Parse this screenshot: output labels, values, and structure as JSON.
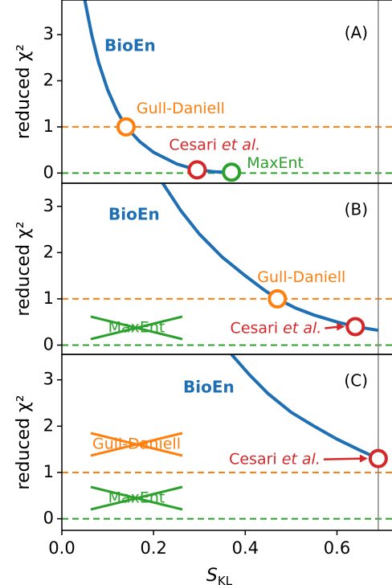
{
  "chart_data": [
    {
      "type": "line",
      "title": "(A)",
      "y_label": "reduced χ²",
      "xlim": [
        0,
        0.72
      ],
      "ylim": [
        -0.22,
        3.75
      ],
      "yticks": [
        0,
        1,
        2,
        3
      ],
      "series": [
        {
          "name": "BioEn",
          "color": "#1f6fb4",
          "x": [
            0.05,
            0.065,
            0.08,
            0.1,
            0.12,
            0.14,
            0.17,
            0.2,
            0.25,
            0.29,
            0.33,
            0.37
          ],
          "values": [
            3.75,
            3.0,
            2.4,
            1.8,
            1.35,
            1.0,
            0.68,
            0.45,
            0.2,
            0.08,
            0.03,
            0.01
          ]
        }
      ],
      "hlines": [
        {
          "value": 1,
          "color": "#ff7f0e"
        },
        {
          "value": 0,
          "color": "#2ca02c"
        }
      ],
      "vline": 0.69,
      "markers": [
        {
          "name": "Gull-Daniell",
          "color": "#ff7f0e",
          "x": 0.14,
          "y": 1.0
        },
        {
          "name": "Cesari et al.",
          "color": "#d62728",
          "x": 0.295,
          "y": 0.07
        },
        {
          "name": "MaxEnt",
          "color": "#2ca02c",
          "x": 0.37,
          "y": 0.02
        }
      ],
      "crossed_out": []
    },
    {
      "type": "line",
      "title": "(B)",
      "y_label": "reduced χ²",
      "xlim": [
        0,
        0.72
      ],
      "ylim": [
        -0.2,
        3.5
      ],
      "yticks": [
        0,
        1,
        2,
        3
      ],
      "series": [
        {
          "name": "BioEn",
          "color": "#1f6fb4",
          "x": [
            0.22,
            0.26,
            0.3,
            0.35,
            0.4,
            0.44,
            0.47,
            0.51,
            0.55,
            0.6,
            0.64,
            0.69
          ],
          "values": [
            3.5,
            2.9,
            2.4,
            1.9,
            1.5,
            1.2,
            1.0,
            0.8,
            0.65,
            0.5,
            0.4,
            0.32
          ]
        }
      ],
      "hlines": [
        {
          "value": 1,
          "color": "#ff7f0e"
        },
        {
          "value": 0,
          "color": "#2ca02c"
        }
      ],
      "vline": 0.69,
      "markers": [
        {
          "name": "Gull-Daniell",
          "color": "#ff7f0e",
          "x": 0.47,
          "y": 1.0
        },
        {
          "name": "Cesari et al.",
          "color": "#d62728",
          "x": 0.64,
          "y": 0.4
        }
      ],
      "crossed_out": [
        {
          "name": "MaxEnt",
          "color": "#2ca02c"
        }
      ]
    },
    {
      "type": "line",
      "title": "(C)",
      "y_label": "reduced χ²",
      "x_label": "S_KL",
      "xlim": [
        0,
        0.72
      ],
      "ylim": [
        -0.25,
        3.55
      ],
      "xticks": [
        {
          "value": 0,
          "label": "0.0"
        },
        0.2,
        0.4,
        0.6
      ],
      "yticks": [
        0,
        1,
        2,
        3
      ],
      "series": [
        {
          "name": "BioEn",
          "color": "#1f6fb4",
          "x": [
            0.37,
            0.41,
            0.45,
            0.5,
            0.55,
            0.6,
            0.65,
            0.69
          ],
          "values": [
            3.55,
            3.1,
            2.7,
            2.3,
            2.0,
            1.72,
            1.48,
            1.3
          ]
        }
      ],
      "hlines": [
        {
          "value": 1,
          "color": "#ff7f0e"
        },
        {
          "value": 0,
          "color": "#2ca02c"
        }
      ],
      "vline": 0.69,
      "markers": [
        {
          "name": "Cesari et al.",
          "color": "#d62728",
          "x": 0.69,
          "y": 1.3
        }
      ],
      "crossed_out": [
        {
          "name": "Gull-Daniell",
          "color": "#ff7f0e"
        },
        {
          "name": "MaxEnt",
          "color": "#2ca02c"
        }
      ]
    }
  ]
}
